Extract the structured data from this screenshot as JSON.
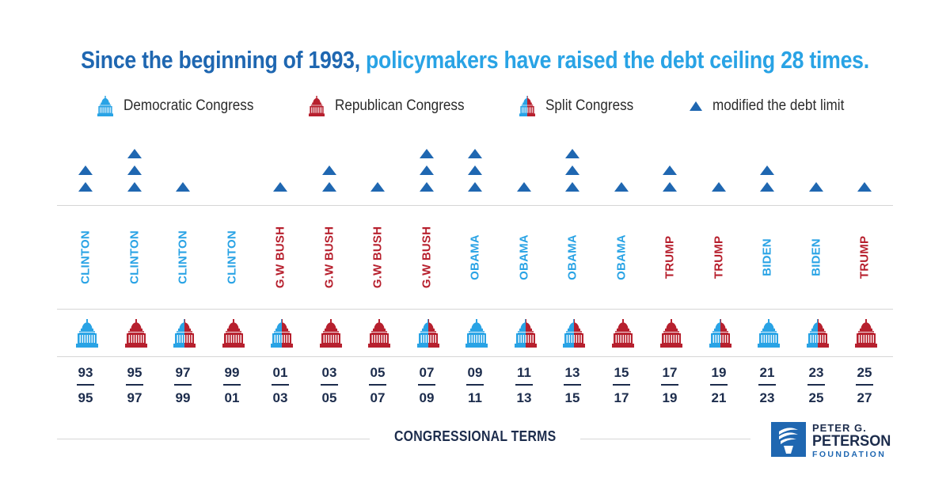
{
  "title": {
    "part1": "Since the beginning of 1993, ",
    "part2": "policymakers have raised the debt ceiling 28 times.",
    "color1": "#1f67b1",
    "color2": "#29a3e5"
  },
  "legend": {
    "democratic": "Democratic Congress",
    "republican": "Republican Congress",
    "split": "Split Congress",
    "modified": "modified the debt limit"
  },
  "colors": {
    "democratic": "#29a3e5",
    "republican": "#b7202e",
    "marker": "#1f67b1",
    "navy": "#1c2c4c"
  },
  "icons": {
    "capitol": "capitol-dome-icon",
    "marker": "triangle-up-icon"
  },
  "chart_data": {
    "type": "table",
    "total_raises": 28,
    "terms": [
      {
        "start": "93",
        "end": "95",
        "president": "CLINTON",
        "president_party": "D",
        "congress": "democratic",
        "raises": 2
      },
      {
        "start": "95",
        "end": "97",
        "president": "CLINTON",
        "president_party": "D",
        "congress": "republican",
        "raises": 3
      },
      {
        "start": "97",
        "end": "99",
        "president": "CLINTON",
        "president_party": "D",
        "congress": "split",
        "raises": 1
      },
      {
        "start": "99",
        "end": "01",
        "president": "CLINTON",
        "president_party": "D",
        "congress": "republican",
        "raises": 0
      },
      {
        "start": "01",
        "end": "03",
        "president": "G.W BUSH",
        "president_party": "R",
        "congress": "split",
        "raises": 1
      },
      {
        "start": "03",
        "end": "05",
        "president": "G.W BUSH",
        "president_party": "R",
        "congress": "republican",
        "raises": 2
      },
      {
        "start": "05",
        "end": "07",
        "president": "G.W BUSH",
        "president_party": "R",
        "congress": "republican",
        "raises": 1
      },
      {
        "start": "07",
        "end": "09",
        "president": "G.W BUSH",
        "president_party": "R",
        "congress": "split",
        "raises": 3
      },
      {
        "start": "09",
        "end": "11",
        "president": "OBAMA",
        "president_party": "D",
        "congress": "democratic",
        "raises": 3
      },
      {
        "start": "11",
        "end": "13",
        "president": "OBAMA",
        "president_party": "D",
        "congress": "split",
        "raises": 1
      },
      {
        "start": "13",
        "end": "15",
        "president": "OBAMA",
        "president_party": "D",
        "congress": "split",
        "raises": 3
      },
      {
        "start": "15",
        "end": "17",
        "president": "OBAMA",
        "president_party": "D",
        "congress": "republican",
        "raises": 1
      },
      {
        "start": "17",
        "end": "19",
        "president": "TRUMP",
        "president_party": "R",
        "congress": "republican",
        "raises": 2
      },
      {
        "start": "19",
        "end": "21",
        "president": "TRUMP",
        "president_party": "R",
        "congress": "split",
        "raises": 1
      },
      {
        "start": "21",
        "end": "23",
        "president": "BIDEN",
        "president_party": "D",
        "congress": "democratic",
        "raises": 2
      },
      {
        "start": "23",
        "end": "25",
        "president": "BIDEN",
        "president_party": "D",
        "congress": "split",
        "raises": 1
      },
      {
        "start": "25",
        "end": "27",
        "president": "TRUMP",
        "president_party": "R",
        "congress": "republican",
        "raises": 1
      }
    ]
  },
  "footer": {
    "axis_label": "CONGRESSIONAL TERMS"
  },
  "logo": {
    "line1": "PETER G.",
    "line2": "PETERSON",
    "line3": "FOUNDATION"
  }
}
